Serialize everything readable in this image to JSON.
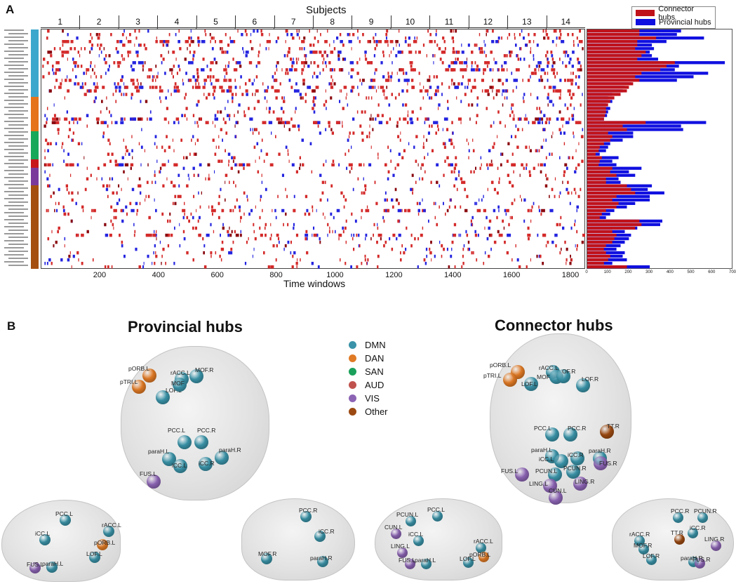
{
  "panel_a": {
    "letter": "A",
    "heatmap_title": "Subjects",
    "subjects": [
      "1",
      "2",
      "3",
      "4",
      "5",
      "6",
      "7",
      "8",
      "9",
      "10",
      "11",
      "12",
      "13",
      "14"
    ],
    "x_label": "Time windows",
    "x_ticks": [
      "200",
      "400",
      "600",
      "800",
      "1000",
      "1200",
      "1400",
      "1600",
      "1800"
    ],
    "bar_x_ticks": [
      "0",
      "100",
      "200",
      "300",
      "400",
      "500",
      "600",
      "700"
    ],
    "legend": [
      {
        "label": "Connector hubs",
        "color": "#c0121b"
      },
      {
        "label": "Provincial hubs",
        "color": "#1010e0"
      }
    ],
    "colors": {
      "connector": "#d42a2a",
      "provincial": "#2424e0",
      "connector_dark": "#8a0a10"
    }
  },
  "panel_b": {
    "letter": "B",
    "provincial_title": "Provincial hubs",
    "connector_title": "Connector hubs",
    "networks": [
      {
        "label": "DMN",
        "color": "#3a93a8"
      },
      {
        "label": "DAN",
        "color": "#e07a25"
      },
      {
        "label": "SAN",
        "color": "#1aa05a"
      },
      {
        "label": "AUD",
        "color": "#c0524e"
      },
      {
        "label": "VIS",
        "color": "#8c64b4"
      },
      {
        "label": "Other",
        "color": "#9c4a12"
      }
    ],
    "provincial_axial": [
      {
        "label": "pORB.L",
        "color": "#e07a25"
      },
      {
        "label": "pTRI.L",
        "color": "#e07a25"
      },
      {
        "label": "LOF.L",
        "color": "#3a93a8"
      },
      {
        "label": "rACC.L",
        "color": "#3a93a8"
      },
      {
        "label": "MOF",
        "color": "#3a93a8"
      },
      {
        "label": "MOF.R",
        "color": "#3a93a8"
      },
      {
        "label": "PCC.L",
        "color": "#3a93a8"
      },
      {
        "label": "PCC.R",
        "color": "#3a93a8"
      },
      {
        "label": "paraH.L",
        "color": "#3a93a8"
      },
      {
        "label": "iCC.L",
        "color": "#3a93a8"
      },
      {
        "label": "iCC.R",
        "color": "#3a93a8"
      },
      {
        "label": "paraH.R",
        "color": "#3a93a8"
      },
      {
        "label": "FUS.L",
        "color": "#8c64b4"
      }
    ],
    "connector_axial": [
      {
        "label": "pORB.L",
        "color": "#e07a25"
      },
      {
        "label": "pTRI.L",
        "color": "#e07a25"
      },
      {
        "label": "LOF.L",
        "color": "#3a93a8"
      },
      {
        "label": "rACC.L",
        "color": "#3a93a8"
      },
      {
        "label": "MOF",
        "color": "#3a93a8"
      },
      {
        "label": "OF.R",
        "color": "#3a93a8"
      },
      {
        "label": "LOF.R",
        "color": "#3a93a8"
      },
      {
        "label": "PCC.L",
        "color": "#3a93a8"
      },
      {
        "label": "PCC.R",
        "color": "#3a93a8"
      },
      {
        "label": "TT.R",
        "color": "#9c4a12"
      },
      {
        "label": "paraH.L",
        "color": "#3a93a8"
      },
      {
        "label": "paraH.R",
        "color": "#3a93a8"
      },
      {
        "label": "iCC.L",
        "color": "#3a93a8"
      },
      {
        "label": "iCC.R",
        "color": "#3a93a8"
      },
      {
        "label": "PCUN.L",
        "color": "#3a93a8"
      },
      {
        "label": "PCUN.R",
        "color": "#3a93a8"
      },
      {
        "label": "FUS.R",
        "color": "#8c64b4"
      },
      {
        "label": "FUS.L",
        "color": "#8c64b4"
      },
      {
        "label": "LING.L",
        "color": "#8c64b4"
      },
      {
        "label": "LING.R",
        "color": "#8c64b4"
      },
      {
        "label": "CUN.L",
        "color": "#8c64b4"
      }
    ],
    "sagittal_views": [
      {
        "nodes": [
          {
            "label": "PCC.L",
            "color": "#3a93a8"
          },
          {
            "label": "iCC.L",
            "color": "#3a93a8"
          },
          {
            "label": "rACC.L",
            "color": "#3a93a8"
          },
          {
            "label": "pORB.L",
            "color": "#e07a25"
          },
          {
            "label": "LOF.L",
            "color": "#3a93a8"
          },
          {
            "label": "FUS.L",
            "color": "#8c64b4"
          },
          {
            "label": "paraH.L",
            "color": "#3a93a8"
          }
        ]
      },
      {
        "nodes": [
          {
            "label": "PCC.R",
            "color": "#3a93a8"
          },
          {
            "label": "iCC.R",
            "color": "#3a93a8"
          },
          {
            "label": "MOF.R",
            "color": "#3a93a8"
          },
          {
            "label": "paraH.R",
            "color": "#3a93a8"
          }
        ]
      },
      {
        "nodes": [
          {
            "label": "PCUN.L",
            "color": "#3a93a8"
          },
          {
            "label": "PCC.L",
            "color": "#3a93a8"
          },
          {
            "label": "CUN.L",
            "color": "#8c64b4"
          },
          {
            "label": "iCC.L",
            "color": "#3a93a8"
          },
          {
            "label": "LING.L",
            "color": "#8c64b4"
          },
          {
            "label": "rACC.L",
            "color": "#3a93a8"
          },
          {
            "label": "pORB.L",
            "color": "#e07a25"
          },
          {
            "label": "FUS.L",
            "color": "#8c64b4"
          },
          {
            "label": "paraH.L",
            "color": "#3a93a8"
          },
          {
            "label": "LOF.L",
            "color": "#3a93a8"
          }
        ]
      },
      {
        "nodes": [
          {
            "label": "PCC.R",
            "color": "#3a93a8"
          },
          {
            "label": "PCUN.R",
            "color": "#3a93a8"
          },
          {
            "label": "iCC.R",
            "color": "#3a93a8"
          },
          {
            "label": "rACC.R",
            "color": "#3a93a8"
          },
          {
            "label": "TT.R",
            "color": "#9c4a12"
          },
          {
            "label": "LING.R",
            "color": "#8c64b4"
          },
          {
            "label": "MOF.R",
            "color": "#3a93a8"
          },
          {
            "label": "LOF.R",
            "color": "#3a93a8"
          },
          {
            "label": "paraH.R",
            "color": "#3a93a8"
          },
          {
            "label": "FUS.R",
            "color": "#8c64b4"
          }
        ]
      }
    ]
  }
}
